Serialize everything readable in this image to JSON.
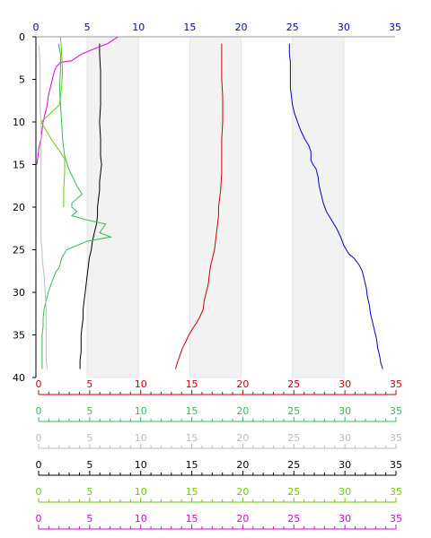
{
  "chart_data": {
    "type": "line",
    "y_axis": {
      "label": "",
      "range": [
        0,
        40
      ],
      "reversed": true,
      "ticks": [
        0,
        5,
        10,
        15,
        20,
        25,
        30,
        35,
        40
      ],
      "color": "#000000"
    },
    "top_axis": {
      "range": [
        0,
        35
      ],
      "ticks": [
        0,
        5,
        10,
        15,
        20,
        25,
        30,
        35
      ],
      "color": "#0000cc"
    },
    "shaded_bands": [
      [
        5,
        10
      ],
      [
        15,
        20
      ],
      [
        25,
        30
      ]
    ],
    "bottom_axes": [
      {
        "name": "axis-red",
        "color": "#cc0000",
        "ticks": [
          0,
          5,
          10,
          15,
          20,
          25,
          30,
          35
        ],
        "range": [
          0,
          35
        ]
      },
      {
        "name": "axis-green",
        "color": "#33bb55",
        "ticks": [
          0,
          5,
          10,
          15,
          20,
          25,
          30,
          35
        ],
        "range": [
          0,
          35
        ]
      },
      {
        "name": "axis-lightgray",
        "color": "#bbbbbb",
        "ticks": [
          0,
          5,
          10,
          15,
          20,
          25,
          30,
          35
        ],
        "range": [
          0,
          35
        ]
      },
      {
        "name": "axis-black",
        "color": "#000000",
        "ticks": [
          0,
          5,
          10,
          15,
          20,
          25,
          30,
          35
        ],
        "range": [
          0,
          35
        ]
      },
      {
        "name": "axis-lime",
        "color": "#66cc00",
        "ticks": [
          0,
          5,
          10,
          15,
          20,
          25,
          30,
          35
        ],
        "range": [
          0,
          35
        ]
      },
      {
        "name": "axis-magenta",
        "color": "#dd00dd",
        "ticks": [
          0,
          5,
          10,
          15,
          20,
          25,
          30,
          35
        ],
        "range": [
          0,
          35
        ]
      }
    ],
    "series": [
      {
        "color": "#0000cc",
        "points": [
          [
            24.7,
            0.8
          ],
          [
            24.7,
            2
          ],
          [
            24.8,
            3
          ],
          [
            24.8,
            5
          ],
          [
            24.8,
            6
          ],
          [
            24.9,
            7
          ],
          [
            25,
            8
          ],
          [
            25.2,
            9
          ],
          [
            25.5,
            10
          ],
          [
            25.8,
            11
          ],
          [
            26.2,
            12
          ],
          [
            26.6,
            12.8
          ],
          [
            26.8,
            13.5
          ],
          [
            26.8,
            14.5
          ],
          [
            27,
            15
          ],
          [
            27.3,
            15.5
          ],
          [
            27.5,
            16.5
          ],
          [
            27.6,
            17.5
          ],
          [
            27.8,
            18.5
          ],
          [
            28,
            19.5
          ],
          [
            28.3,
            20.5
          ],
          [
            28.8,
            21.5
          ],
          [
            29.3,
            22.5
          ],
          [
            29.7,
            23.5
          ],
          [
            30,
            24.5
          ],
          [
            30.5,
            25.5
          ],
          [
            31,
            26
          ],
          [
            31.5,
            26.8
          ],
          [
            31.8,
            27.5
          ],
          [
            32,
            28.5
          ],
          [
            32.2,
            29.5
          ],
          [
            32.3,
            30.5
          ],
          [
            32.5,
            31.5
          ],
          [
            32.6,
            32.5
          ],
          [
            32.8,
            33.5
          ],
          [
            33,
            34.5
          ],
          [
            33.2,
            35.5
          ],
          [
            33.3,
            36.5
          ],
          [
            33.5,
            37.5
          ],
          [
            33.6,
            38.3
          ],
          [
            33.8,
            39
          ]
        ]
      },
      {
        "color": "#cc0000",
        "points": [
          [
            18.1,
            0.8
          ],
          [
            18.1,
            3
          ],
          [
            18.1,
            5
          ],
          [
            18.2,
            7
          ],
          [
            18.2,
            10
          ],
          [
            18.1,
            12
          ],
          [
            18.1,
            14
          ],
          [
            18.1,
            16
          ],
          [
            18,
            18
          ],
          [
            17.9,
            19
          ],
          [
            17.8,
            20
          ],
          [
            17.8,
            21
          ],
          [
            17.7,
            22
          ],
          [
            17.6,
            23
          ],
          [
            17.5,
            24
          ],
          [
            17.4,
            25
          ],
          [
            17.2,
            26
          ],
          [
            17,
            27
          ],
          [
            16.9,
            28
          ],
          [
            16.8,
            29
          ],
          [
            16.6,
            30
          ],
          [
            16.4,
            31
          ],
          [
            16.3,
            32
          ],
          [
            16,
            32.8
          ],
          [
            15.7,
            33.5
          ],
          [
            15.3,
            34.2
          ],
          [
            14.9,
            35
          ],
          [
            14.6,
            35.8
          ],
          [
            14.3,
            36.5
          ],
          [
            14,
            37.5
          ],
          [
            13.8,
            38.2
          ],
          [
            13.6,
            39
          ]
        ]
      },
      {
        "color": "#000000",
        "points": [
          [
            6.2,
            0.8
          ],
          [
            6.2,
            2
          ],
          [
            6.3,
            4
          ],
          [
            6.3,
            6
          ],
          [
            6.3,
            8
          ],
          [
            6.2,
            10
          ],
          [
            6.3,
            12
          ],
          [
            6.3,
            14
          ],
          [
            6.4,
            15
          ],
          [
            6.3,
            16
          ],
          [
            6.2,
            17
          ],
          [
            6.2,
            18
          ],
          [
            6.1,
            19
          ],
          [
            6,
            20
          ],
          [
            6,
            21
          ],
          [
            5.9,
            22
          ],
          [
            5.7,
            23
          ],
          [
            5.5,
            24
          ],
          [
            5.4,
            25
          ],
          [
            5.2,
            26
          ],
          [
            5.1,
            27
          ],
          [
            5,
            28
          ],
          [
            4.9,
            29
          ],
          [
            4.8,
            30
          ],
          [
            4.7,
            31
          ],
          [
            4.6,
            32
          ],
          [
            4.6,
            33
          ],
          [
            4.5,
            34
          ],
          [
            4.4,
            35
          ],
          [
            4.4,
            36
          ],
          [
            4.4,
            37
          ],
          [
            4.3,
            38
          ],
          [
            4.3,
            39
          ]
        ]
      },
      {
        "color": "#dd00dd",
        "points": [
          [
            8,
            0
          ],
          [
            7,
            0.8
          ],
          [
            5.5,
            1.5
          ],
          [
            4.5,
            2
          ],
          [
            3.5,
            2.8
          ],
          [
            2.4,
            3
          ],
          [
            2,
            3.5
          ],
          [
            1.8,
            4
          ],
          [
            1.6,
            5
          ],
          [
            1.4,
            6
          ],
          [
            1.2,
            7
          ],
          [
            1.1,
            8
          ],
          [
            0.9,
            9
          ],
          [
            0.7,
            10
          ],
          [
            0.6,
            11
          ],
          [
            0.5,
            12
          ],
          [
            0.3,
            13
          ],
          [
            0.2,
            14
          ],
          [
            0.1,
            15
          ]
        ]
      },
      {
        "color": "#66cc00",
        "points": [
          [
            2.4,
            0
          ],
          [
            2.5,
            2
          ],
          [
            2.6,
            4
          ],
          [
            2.5,
            6
          ],
          [
            2.3,
            8
          ],
          [
            0.5,
            10
          ],
          [
            1.5,
            12
          ],
          [
            2.8,
            14.3
          ],
          [
            2.8,
            16
          ],
          [
            2.7,
            18
          ],
          [
            2.7,
            20
          ]
        ]
      },
      {
        "color": "#33bb55",
        "points": [
          [
            2.2,
            0.8
          ],
          [
            2.4,
            2
          ],
          [
            2.4,
            4
          ],
          [
            2.3,
            6
          ],
          [
            2.4,
            8
          ],
          [
            2.5,
            10
          ],
          [
            2.6,
            12
          ],
          [
            2.8,
            14
          ],
          [
            3.2,
            15.5
          ],
          [
            3.6,
            16.5
          ],
          [
            4,
            17.5
          ],
          [
            4.5,
            18.5
          ],
          [
            4,
            19
          ],
          [
            3.5,
            19.5
          ],
          [
            3.5,
            20
          ],
          [
            4,
            20.5
          ],
          [
            3.5,
            21
          ],
          [
            5,
            21.5
          ],
          [
            6.8,
            22
          ],
          [
            6.2,
            23
          ],
          [
            7.3,
            23.5
          ],
          [
            5,
            24
          ],
          [
            3,
            25
          ],
          [
            2.5,
            26
          ],
          [
            2.3,
            27
          ],
          [
            2,
            27.5
          ],
          [
            1.8,
            28
          ],
          [
            1.5,
            29
          ],
          [
            1.2,
            30
          ],
          [
            1,
            31
          ],
          [
            0.8,
            32
          ],
          [
            0.7,
            33
          ],
          [
            0.7,
            34
          ],
          [
            0.6,
            35
          ],
          [
            0.6,
            36
          ],
          [
            0.6,
            37
          ],
          [
            0.6,
            38
          ],
          [
            0.6,
            39
          ]
        ]
      },
      {
        "color": "#bbbbbb",
        "points": [
          [
            0.3,
            1
          ],
          [
            0.4,
            3
          ],
          [
            0.4,
            5
          ],
          [
            0.4,
            8
          ],
          [
            0.5,
            10
          ],
          [
            0.5,
            12
          ],
          [
            0.5,
            14
          ],
          [
            0.5,
            16
          ],
          [
            0.5,
            18
          ],
          [
            0.5,
            20
          ],
          [
            0.5,
            22
          ],
          [
            0.5,
            24
          ],
          [
            0.6,
            25
          ],
          [
            0.6,
            26
          ],
          [
            0.7,
            27
          ],
          [
            0.8,
            28
          ],
          [
            0.9,
            30
          ],
          [
            1,
            32
          ],
          [
            1,
            34
          ],
          [
            1,
            36
          ],
          [
            1,
            38
          ],
          [
            1.1,
            39
          ]
        ]
      }
    ]
  }
}
